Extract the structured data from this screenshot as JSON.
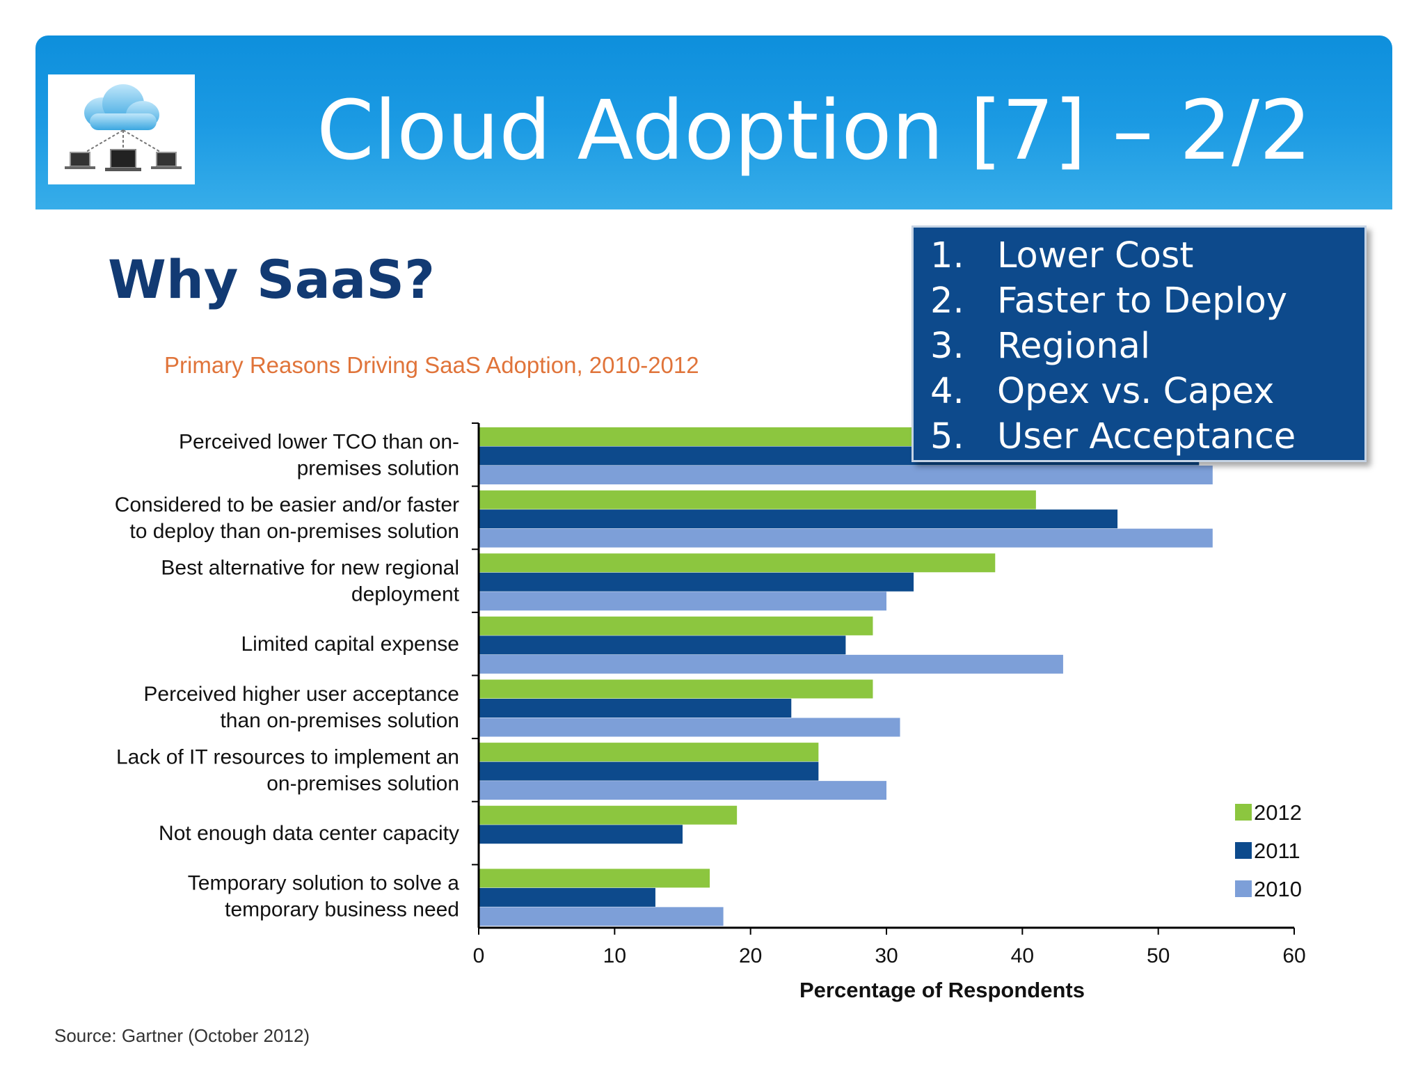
{
  "slide": {
    "title": "Cloud Adoption [7] – 2/2",
    "heading": "Why SaaS?",
    "logo_icon": "cloud-network-icon"
  },
  "reasons": [
    {
      "num": "1.",
      "text": "Lower Cost"
    },
    {
      "num": "2.",
      "text": "Faster to Deploy"
    },
    {
      "num": "3.",
      "text": "Regional"
    },
    {
      "num": "4.",
      "text": "Opex vs. Capex"
    },
    {
      "num": "5.",
      "text": "User Acceptance"
    }
  ],
  "source": "Source: Gartner (October 2012)",
  "colors": {
    "banner": "#1b9ae3",
    "heading": "#123a73",
    "chart_title": "#e0743a",
    "reasons_box": "#0d4a8c"
  },
  "chart_data": {
    "type": "bar",
    "orientation": "horizontal",
    "title": "Primary Reasons Driving SaaS Adoption, 2010-2012",
    "xlabel": "Percentage of Respondents",
    "ylabel": "",
    "xlim": [
      0,
      60
    ],
    "xticks": [
      0,
      10,
      20,
      30,
      40,
      50,
      60
    ],
    "grid": false,
    "legend_position": "bottom-right",
    "categories": [
      [
        "Perceived lower TCO than on-",
        "premises solution"
      ],
      [
        "Considered to be easier and/or faster",
        "to deploy than on-premises solution"
      ],
      [
        "Best alternative for new regional",
        "deployment"
      ],
      [
        "Limited capital expense"
      ],
      [
        "Perceived higher user acceptance",
        "than on-premises solution"
      ],
      [
        "Lack of IT resources to implement an",
        "on-premises solution"
      ],
      [
        "Not enough data center capacity"
      ],
      [
        "Temporary solution to solve a",
        "temporary business need"
      ]
    ],
    "series": [
      {
        "name": "2012",
        "color": "#8cc63f",
        "values": [
          46,
          41,
          38,
          29,
          29,
          25,
          19,
          17
        ]
      },
      {
        "name": "2011",
        "color": "#0d4a8c",
        "values": [
          53,
          47,
          32,
          27,
          23,
          25,
          15,
          13
        ]
      },
      {
        "name": "2010",
        "color": "#7d9fd8",
        "values": [
          54,
          54,
          30,
          43,
          31,
          30,
          0,
          18
        ]
      }
    ]
  }
}
